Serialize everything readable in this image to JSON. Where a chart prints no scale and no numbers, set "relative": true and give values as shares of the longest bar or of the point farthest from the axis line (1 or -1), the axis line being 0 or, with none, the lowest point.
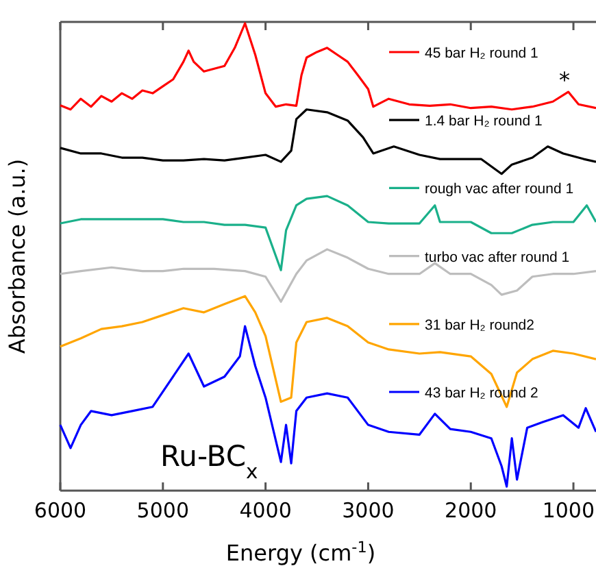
{
  "chart_data": {
    "type": "line",
    "relative": true,
    "xlabel": "Energy (cm$^{-1}$)",
    "ylabel": "Absorbance (a.u.)",
    "xlim": [
      6000,
      780
    ],
    "xticks": [
      6000,
      5000,
      4000,
      3000,
      2000,
      1000
    ],
    "legend": "right",
    "grid": false,
    "marker": "none",
    "line_style": "solid",
    "annotations": [
      "*",
      "Ru-BC$_{x}$"
    ],
    "series": [
      {
        "name": "45 bar H₂ round 1",
        "color": "#ff0000",
        "x": [
          6000,
          5900,
          5800,
          5700,
          5600,
          5500,
          5400,
          5300,
          5200,
          5100,
          5000,
          4900,
          4800,
          4750,
          4700,
          4600,
          4500,
          4400,
          4300,
          4200,
          4100,
          4000,
          3900,
          3800,
          3700,
          3650,
          3600,
          3500,
          3400,
          3300,
          3200,
          3100,
          3000,
          2950,
          2800,
          2600,
          2400,
          2200,
          2000,
          1800,
          1600,
          1400,
          1200,
          1050,
          950,
          780
        ],
        "values": [
          0.823,
          0.814,
          0.837,
          0.82,
          0.843,
          0.831,
          0.849,
          0.837,
          0.855,
          0.849,
          0.864,
          0.879,
          0.917,
          0.941,
          0.917,
          0.896,
          0.902,
          0.908,
          0.947,
          1,
          0.932,
          0.849,
          0.82,
          0.825,
          0.822,
          0.888,
          0.926,
          0.938,
          0.947,
          0.932,
          0.917,
          0.888,
          0.858,
          0.82,
          0.837,
          0.825,
          0.822,
          0.825,
          0.817,
          0.82,
          0.814,
          0.82,
          0.831,
          0.852,
          0.825,
          0.817
        ]
      },
      {
        "name": "1.4 bar H₂ round 1",
        "color": "#000000",
        "x": [
          6000,
          5800,
          5600,
          5400,
          5200,
          5000,
          4800,
          4600,
          4400,
          4200,
          4000,
          3850,
          3750,
          3700,
          3600,
          3400,
          3200,
          3050,
          2950,
          2750,
          2500,
          2300,
          2100,
          1900,
          1700,
          1600,
          1400,
          1250,
          1100,
          900,
          780
        ],
        "values": [
          0.731,
          0.719,
          0.719,
          0.71,
          0.71,
          0.704,
          0.704,
          0.707,
          0.704,
          0.71,
          0.716,
          0.701,
          0.725,
          0.793,
          0.814,
          0.808,
          0.79,
          0.754,
          0.719,
          0.734,
          0.716,
          0.707,
          0.707,
          0.707,
          0.675,
          0.695,
          0.71,
          0.734,
          0.719,
          0.707,
          0.701
        ]
      },
      {
        "name": "rough vac after round 1",
        "color": "#1ab08a",
        "x": [
          6000,
          5800,
          5600,
          5400,
          5200,
          5000,
          4800,
          4600,
          4400,
          4200,
          4000,
          3850,
          3800,
          3700,
          3600,
          3400,
          3200,
          3000,
          2800,
          2500,
          2350,
          2300,
          2000,
          1800,
          1600,
          1400,
          1200,
          1000,
          870,
          780
        ],
        "values": [
          0.568,
          0.577,
          0.577,
          0.577,
          0.577,
          0.577,
          0.571,
          0.571,
          0.565,
          0.565,
          0.559,
          0.467,
          0.553,
          0.607,
          0.621,
          0.627,
          0.607,
          0.571,
          0.568,
          0.568,
          0.607,
          0.571,
          0.571,
          0.547,
          0.547,
          0.565,
          0.571,
          0.571,
          0.607,
          0.571
        ]
      },
      {
        "name": "turbo vac after round 1",
        "color": "#bdbdbd",
        "x": [
          6000,
          5800,
          5500,
          5200,
          5000,
          4800,
          4500,
          4200,
          4000,
          3850,
          3700,
          3600,
          3400,
          3200,
          3000,
          2800,
          2500,
          2350,
          2200,
          2000,
          1800,
          1700,
          1550,
          1400,
          1200,
          1000,
          780
        ],
        "values": [
          0.459,
          0.465,
          0.473,
          0.465,
          0.465,
          0.47,
          0.47,
          0.465,
          0.453,
          0.399,
          0.459,
          0.488,
          0.512,
          0.494,
          0.47,
          0.459,
          0.459,
          0.482,
          0.459,
          0.459,
          0.435,
          0.414,
          0.423,
          0.453,
          0.459,
          0.459,
          0.465
        ]
      },
      {
        "name": "31 bar H₂ round2",
        "color": "#ffa500",
        "x": [
          6000,
          5800,
          5600,
          5400,
          5200,
          5000,
          4800,
          4600,
          4400,
          4200,
          4100,
          4000,
          3850,
          3750,
          3700,
          3600,
          3400,
          3200,
          3000,
          2800,
          2500,
          2300,
          2000,
          1800,
          1650,
          1550,
          1400,
          1200,
          1000,
          780
        ],
        "values": [
          0.302,
          0.32,
          0.34,
          0.346,
          0.355,
          0.37,
          0.385,
          0.376,
          0.394,
          0.411,
          0.376,
          0.325,
          0.183,
          0.192,
          0.311,
          0.355,
          0.364,
          0.346,
          0.311,
          0.296,
          0.287,
          0.29,
          0.281,
          0.243,
          0.172,
          0.246,
          0.275,
          0.293,
          0.287,
          0.275
        ]
      },
      {
        "name": "43 bar H₂ round 2",
        "color": "#0000ff",
        "x": [
          6000,
          5900,
          5800,
          5700,
          5500,
          5300,
          5100,
          4750,
          4600,
          4400,
          4250,
          4200,
          4100,
          4000,
          3850,
          3800,
          3750,
          3700,
          3600,
          3400,
          3200,
          3000,
          2800,
          2500,
          2350,
          2200,
          2000,
          1800,
          1700,
          1650,
          1600,
          1550,
          1450,
          1300,
          1100,
          950,
          880,
          780
        ],
        "values": [
          0.133,
          0.083,
          0.133,
          0.163,
          0.154,
          0.163,
          0.172,
          0.287,
          0.216,
          0.237,
          0.281,
          0.346,
          0.26,
          0.192,
          0.053,
          0.133,
          0.05,
          0.163,
          0.192,
          0.201,
          0.192,
          0.133,
          0.118,
          0.112,
          0.157,
          0.124,
          0.118,
          0.104,
          0.044,
          0,
          0.104,
          0.015,
          0.127,
          0.139,
          0.154,
          0.127,
          0.169,
          0.118
        ]
      }
    ]
  }
}
